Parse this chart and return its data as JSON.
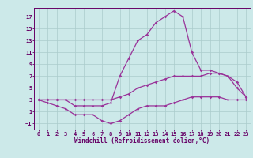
{
  "x": [
    0,
    1,
    2,
    3,
    4,
    5,
    6,
    7,
    8,
    9,
    10,
    11,
    12,
    13,
    14,
    15,
    16,
    17,
    18,
    19,
    20,
    21,
    22,
    23
  ],
  "y_max": [
    3,
    3,
    3,
    3,
    2,
    2,
    2,
    2,
    2.5,
    7,
    10,
    13,
    14,
    16,
    17,
    18,
    17,
    11,
    8,
    8,
    7.5,
    7,
    5,
    3.5
  ],
  "y_mean": [
    3,
    3,
    3,
    3,
    3,
    3,
    3,
    3,
    3,
    3.5,
    4,
    5,
    5.5,
    6,
    6.5,
    7,
    7,
    7,
    7,
    7.5,
    7.5,
    7,
    6,
    3.5
  ],
  "y_min": [
    3,
    2.5,
    2,
    1.5,
    0.5,
    0.5,
    0.5,
    -0.5,
    -1,
    -0.5,
    0.5,
    1.5,
    2,
    2,
    2,
    2.5,
    3,
    3.5,
    3.5,
    3.5,
    3.5,
    3,
    3,
    3
  ],
  "bg_color": "#cce9e9",
  "grid_color": "#aacccc",
  "line_color": "#993399",
  "marker": "D",
  "marker_size": 1.8,
  "line_width": 0.9,
  "xlim": [
    -0.5,
    23.5
  ],
  "ylim": [
    -2,
    18.5
  ],
  "yticks": [
    -1,
    1,
    3,
    5,
    7,
    9,
    11,
    13,
    15,
    17
  ],
  "xticks": [
    0,
    1,
    2,
    3,
    4,
    5,
    6,
    7,
    8,
    9,
    10,
    11,
    12,
    13,
    14,
    15,
    16,
    17,
    18,
    19,
    20,
    21,
    22,
    23
  ],
  "xlabel": "Windchill (Refroidissement éolien,°C)",
  "xlabel_fontsize": 5.5,
  "tick_fontsize": 5.0,
  "axis_color": "#660066"
}
